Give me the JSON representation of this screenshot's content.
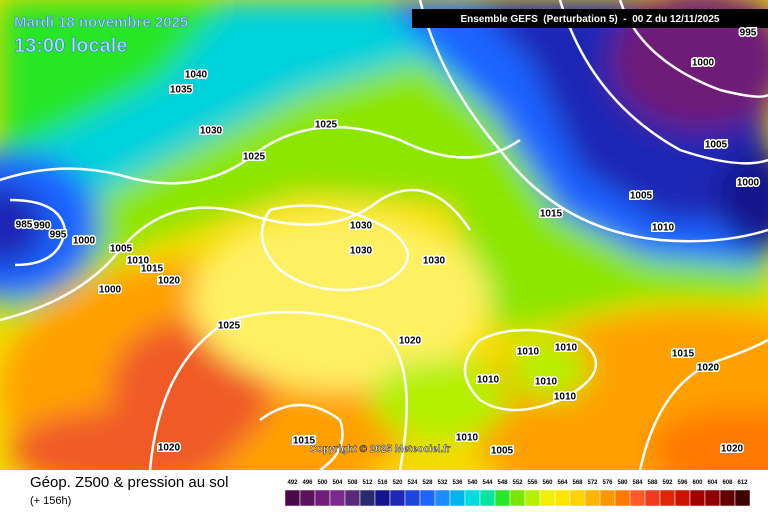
{
  "header": {
    "date": "Mardi 18 novembre 2025",
    "time": "13:00 locale",
    "run": "Ensemble GEFS  (Perturbation 5)  -  00 Z du 12/11/2025"
  },
  "copyright": "Copyright © 2025 Meteociel.fr",
  "footer": {
    "title": "Géop. Z500 & pression au sol",
    "lead": "(+ 156h)"
  },
  "isobar_labels": [
    "995",
    "1000",
    "1040",
    "1035",
    "1030",
    "1025",
    "1025",
    "1005",
    "1000",
    "1005",
    "1015",
    "1010",
    "985",
    "990",
    "995",
    "1000",
    "1005",
    "1010",
    "1015",
    "1020",
    "1000",
    "1030",
    "1030",
    "1030",
    "1025",
    "1020",
    "1010",
    "1010",
    "1015",
    "1020",
    "1010",
    "1010",
    "1010",
    "1015",
    "1020",
    "1010",
    "1005",
    "1020"
  ],
  "scale": {
    "values": [
      492,
      496,
      500,
      504,
      508,
      512,
      516,
      520,
      524,
      528,
      532,
      536,
      540,
      544,
      548,
      552,
      556,
      560,
      564,
      568,
      572,
      576,
      580,
      584,
      588,
      592,
      596,
      600,
      604,
      608,
      612
    ],
    "colors": [
      "#4a0a4a",
      "#5a145c",
      "#6e1e78",
      "#7a2a8c",
      "#5a2a7a",
      "#2a2a6e",
      "#14148c",
      "#1e28b4",
      "#1e46dc",
      "#1e64ff",
      "#1e8cff",
      "#00b4f0",
      "#00dcdc",
      "#00e6a0",
      "#28e628",
      "#78e600",
      "#b4f000",
      "#f0f000",
      "#ffe600",
      "#ffd200",
      "#ffb400",
      "#ff9600",
      "#ff7800",
      "#ff5a28",
      "#f03c1e",
      "#dc280a",
      "#c81400",
      "#a00000",
      "#8c0000",
      "#640000",
      "#3c0000"
    ]
  }
}
